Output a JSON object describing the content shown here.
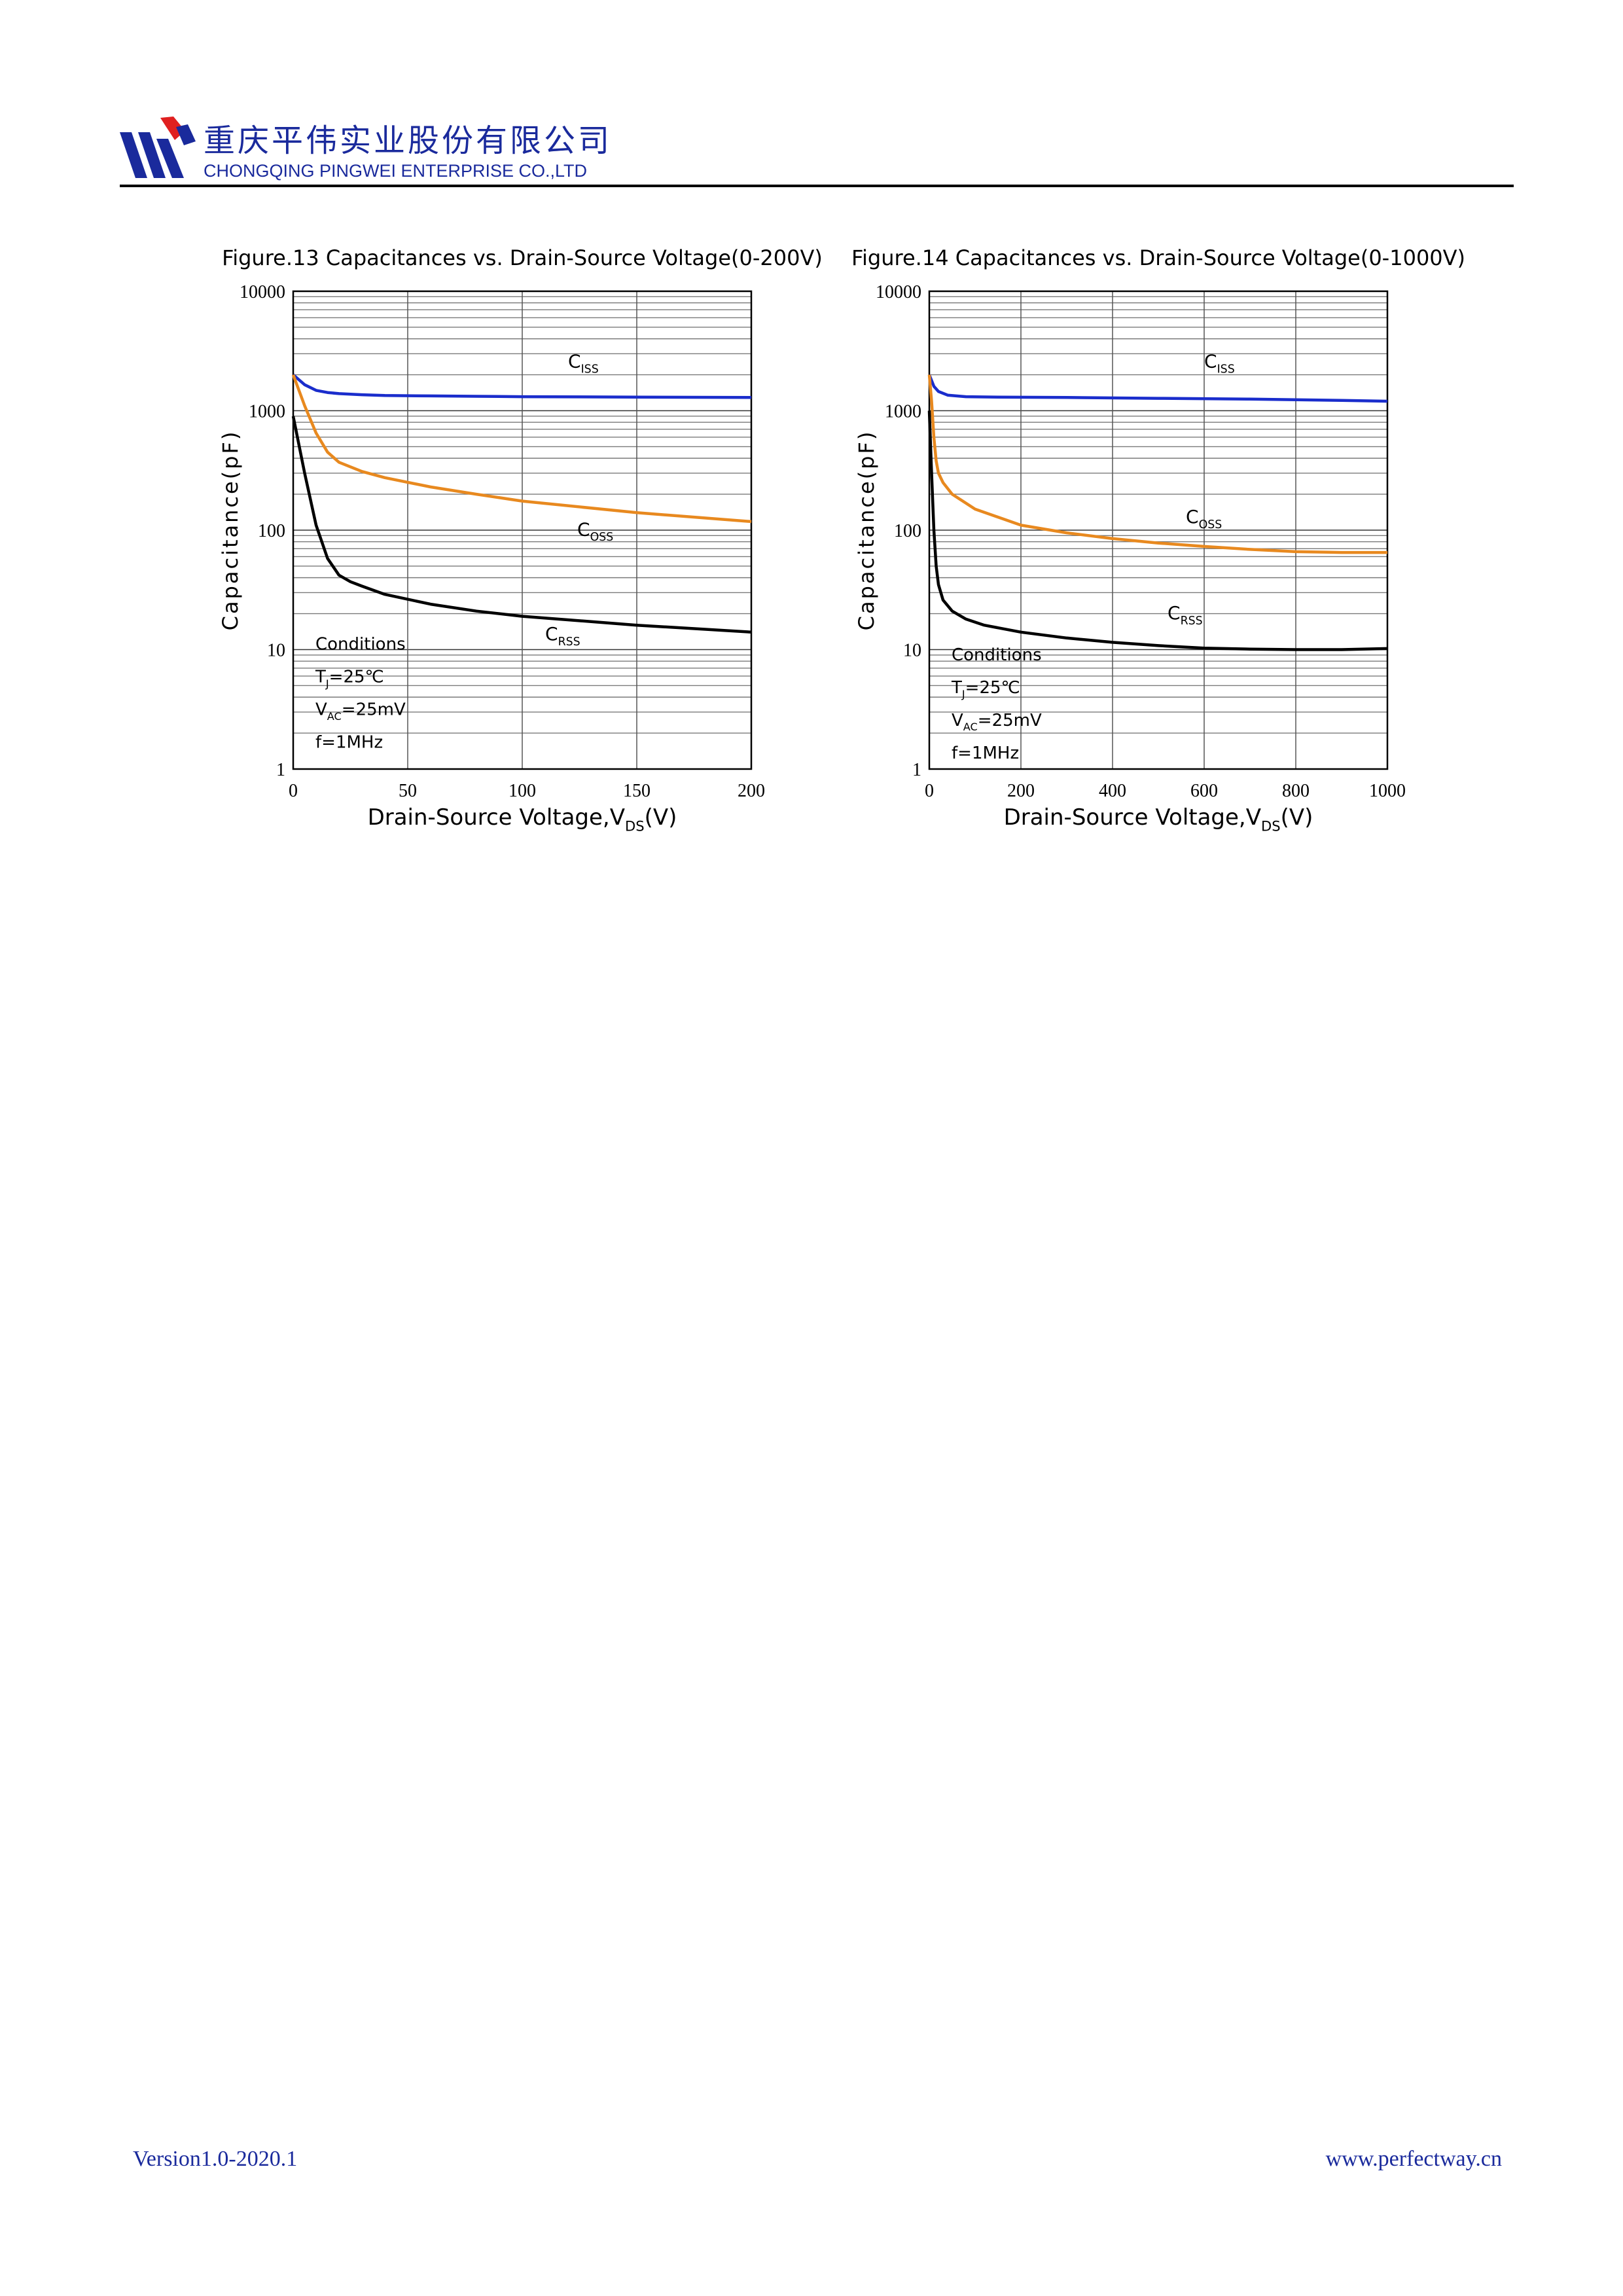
{
  "header": {
    "company_cn": "重庆平伟实业股份有限公司",
    "company_en": "CHONGQING PINGWEI ENTERPRISE CO.,LTD",
    "brand_blue": "#1a2a9c",
    "brand_red": "#e02020"
  },
  "footer": {
    "version": "Version1.0-2020.1",
    "website": "www.perfectway.cn"
  },
  "chart_data": [
    {
      "type": "line",
      "title": "Figure.13 Capacitances vs. Drain-Source Voltage(0-200V)",
      "xlabel": "Drain-Source Voltage,VDS(V)",
      "ylabel": "Capacitance(pF)",
      "xlim": [
        0,
        200
      ],
      "ylim": [
        1,
        10000
      ],
      "yscale": "log",
      "grid": true,
      "xticks": [
        "0",
        "50",
        "100",
        "150",
        "200"
      ],
      "yticks": [
        "1",
        "10",
        "100",
        "1000",
        "10000"
      ],
      "conditions": [
        "Conditions",
        "TJ=25℃",
        "VAC=25mV",
        "f=1MHz"
      ],
      "series": [
        {
          "name": "CISS",
          "color": "#1a2dcc",
          "x": [
            0,
            5,
            10,
            15,
            20,
            30,
            40,
            60,
            80,
            100,
            150,
            200
          ],
          "y": [
            2000,
            1650,
            1480,
            1420,
            1390,
            1360,
            1340,
            1330,
            1320,
            1310,
            1300,
            1290
          ]
        },
        {
          "name": "COSS",
          "color": "#e8891f",
          "x": [
            0,
            5,
            10,
            15,
            20,
            30,
            40,
            60,
            80,
            100,
            150,
            200
          ],
          "y": [
            2000,
            1100,
            650,
            450,
            370,
            310,
            275,
            230,
            200,
            175,
            140,
            118
          ]
        },
        {
          "name": "CRSS",
          "color": "#000000",
          "x": [
            0,
            5,
            10,
            15,
            20,
            25,
            30,
            40,
            60,
            80,
            100,
            150,
            200
          ],
          "y": [
            900,
            300,
            110,
            58,
            42,
            37,
            34,
            29,
            24,
            21,
            19,
            16,
            14
          ]
        }
      ]
    },
    {
      "type": "line",
      "title": "Figure.14 Capacitances vs. Drain-Source Voltage(0-1000V)",
      "xlabel": "Drain-Source Voltage,VDS(V)",
      "ylabel": "Capacitance(pF)",
      "xlim": [
        0,
        1000
      ],
      "ylim": [
        1,
        10000
      ],
      "yscale": "log",
      "grid": true,
      "xticks": [
        "0",
        "200",
        "400",
        "600",
        "800",
        "1000"
      ],
      "yticks": [
        "1",
        "10",
        "100",
        "1000",
        "10000"
      ],
      "conditions": [
        "Conditions",
        "TJ=25℃",
        "VAC=25mV",
        "f=1MHz"
      ],
      "series": [
        {
          "name": "CISS",
          "color": "#1a2dcc",
          "x": [
            0,
            10,
            20,
            40,
            80,
            150,
            300,
            500,
            700,
            900,
            1000
          ],
          "y": [
            2000,
            1600,
            1450,
            1350,
            1310,
            1300,
            1290,
            1270,
            1250,
            1220,
            1200
          ]
        },
        {
          "name": "COSS",
          "color": "#e8891f",
          "x": [
            0,
            5,
            10,
            15,
            20,
            30,
            50,
            100,
            200,
            300,
            400,
            500,
            600,
            700,
            800,
            900,
            1000
          ],
          "y": [
            2000,
            1200,
            600,
            380,
            300,
            250,
            200,
            150,
            110,
            95,
            85,
            78,
            73,
            69,
            66,
            65,
            65
          ]
        },
        {
          "name": "CRSS",
          "color": "#000000",
          "x": [
            0,
            5,
            10,
            15,
            20,
            30,
            50,
            80,
            120,
            200,
            300,
            400,
            500,
            600,
            700,
            800,
            900,
            1000
          ],
          "y": [
            1000,
            300,
            100,
            50,
            35,
            26,
            21,
            18,
            16,
            14,
            12.5,
            11.5,
            10.8,
            10.3,
            10.1,
            10.0,
            10.0,
            10.2
          ]
        }
      ]
    }
  ]
}
